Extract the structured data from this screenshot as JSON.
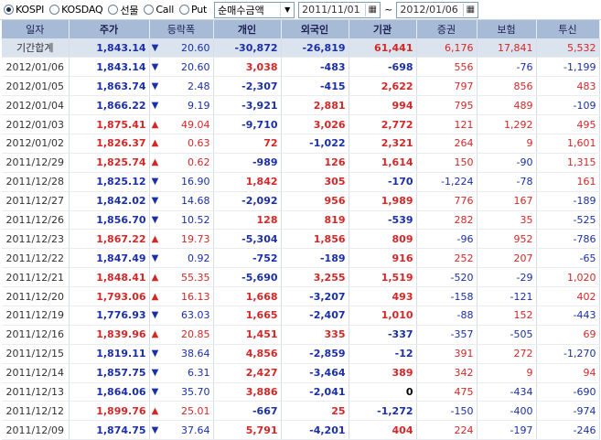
{
  "market_options": [
    {
      "label": "KOSPI",
      "selected": true
    },
    {
      "label": "KOSDAQ",
      "selected": false
    },
    {
      "label": "선물",
      "selected": false
    },
    {
      "label": "Call",
      "selected": false
    },
    {
      "label": "Put",
      "selected": false
    }
  ],
  "mode_select": {
    "value": "순매수금액"
  },
  "date_range": {
    "start": "2011/11/01",
    "separator": "~",
    "end": "2012/01/06"
  },
  "columns": [
    "일자",
    "주가",
    "등락폭",
    "개인",
    "외국인",
    "기관",
    "증권",
    "보험",
    "투신"
  ],
  "colors": {
    "up": "#d42727",
    "down": "#1a2fa8",
    "header_bg": "#a7bbd7",
    "summary_bg": "#dbe3ef"
  },
  "rows": [
    {
      "date": "기간합계",
      "price": "1,843.14",
      "dir": "down",
      "change": "20.60",
      "individual": "-30,872",
      "foreign": "-26,819",
      "institution": "61,441",
      "securities": "6,176",
      "insurance": "17,841",
      "trust": "5,532"
    },
    {
      "date": "2012/01/06",
      "price": "1,843.14",
      "dir": "down",
      "change": "20.60",
      "individual": "3,038",
      "foreign": "-483",
      "institution": "-698",
      "securities": "556",
      "insurance": "-76",
      "trust": "-1,199"
    },
    {
      "date": "2012/01/05",
      "price": "1,863.74",
      "dir": "down",
      "change": "2.48",
      "individual": "-2,307",
      "foreign": "-415",
      "institution": "2,622",
      "securities": "797",
      "insurance": "856",
      "trust": "483"
    },
    {
      "date": "2012/01/04",
      "price": "1,866.22",
      "dir": "down",
      "change": "9.19",
      "individual": "-3,921",
      "foreign": "2,881",
      "institution": "994",
      "securities": "795",
      "insurance": "489",
      "trust": "-109"
    },
    {
      "date": "2012/01/03",
      "price": "1,875.41",
      "dir": "up",
      "change": "49.04",
      "individual": "-9,710",
      "foreign": "3,026",
      "institution": "2,772",
      "securities": "121",
      "insurance": "1,292",
      "trust": "495"
    },
    {
      "date": "2012/01/02",
      "price": "1,826.37",
      "dir": "up",
      "change": "0.63",
      "individual": "72",
      "foreign": "-1,022",
      "institution": "2,321",
      "securities": "264",
      "insurance": "9",
      "trust": "1,601"
    },
    {
      "date": "2011/12/29",
      "price": "1,825.74",
      "dir": "up",
      "change": "0.62",
      "individual": "-989",
      "foreign": "126",
      "institution": "1,614",
      "securities": "150",
      "insurance": "-90",
      "trust": "1,315"
    },
    {
      "date": "2011/12/28",
      "price": "1,825.12",
      "dir": "down",
      "change": "16.90",
      "individual": "1,842",
      "foreign": "305",
      "institution": "-170",
      "securities": "-1,224",
      "insurance": "-78",
      "trust": "161"
    },
    {
      "date": "2011/12/27",
      "price": "1,842.02",
      "dir": "down",
      "change": "14.68",
      "individual": "-2,092",
      "foreign": "956",
      "institution": "1,989",
      "securities": "776",
      "insurance": "167",
      "trust": "-189"
    },
    {
      "date": "2011/12/26",
      "price": "1,856.70",
      "dir": "down",
      "change": "10.52",
      "individual": "128",
      "foreign": "819",
      "institution": "-539",
      "securities": "282",
      "insurance": "35",
      "trust": "-525"
    },
    {
      "date": "2011/12/23",
      "price": "1,867.22",
      "dir": "up",
      "change": "19.73",
      "individual": "-5,304",
      "foreign": "1,856",
      "institution": "809",
      "securities": "-96",
      "insurance": "952",
      "trust": "-786"
    },
    {
      "date": "2011/12/22",
      "price": "1,847.49",
      "dir": "down",
      "change": "0.92",
      "individual": "-752",
      "foreign": "-189",
      "institution": "916",
      "securities": "252",
      "insurance": "207",
      "trust": "-65"
    },
    {
      "date": "2011/12/21",
      "price": "1,848.41",
      "dir": "up",
      "change": "55.35",
      "individual": "-5,690",
      "foreign": "3,255",
      "institution": "1,519",
      "securities": "-520",
      "insurance": "-29",
      "trust": "1,020"
    },
    {
      "date": "2011/12/20",
      "price": "1,793.06",
      "dir": "up",
      "change": "16.13",
      "individual": "1,668",
      "foreign": "-3,207",
      "institution": "493",
      "securities": "-158",
      "insurance": "-121",
      "trust": "402"
    },
    {
      "date": "2011/12/19",
      "price": "1,776.93",
      "dir": "down",
      "change": "63.03",
      "individual": "1,665",
      "foreign": "-2,407",
      "institution": "1,010",
      "securities": "-88",
      "insurance": "152",
      "trust": "-443"
    },
    {
      "date": "2011/12/16",
      "price": "1,839.96",
      "dir": "up",
      "change": "20.85",
      "individual": "1,451",
      "foreign": "335",
      "institution": "-337",
      "securities": "-357",
      "insurance": "-505",
      "trust": "69"
    },
    {
      "date": "2011/12/15",
      "price": "1,819.11",
      "dir": "down",
      "change": "38.64",
      "individual": "4,856",
      "foreign": "-2,859",
      "institution": "-12",
      "securities": "391",
      "insurance": "272",
      "trust": "-1,270"
    },
    {
      "date": "2011/12/14",
      "price": "1,857.75",
      "dir": "down",
      "change": "6.31",
      "individual": "2,427",
      "foreign": "-3,464",
      "institution": "389",
      "securities": "342",
      "insurance": "9",
      "trust": "94"
    },
    {
      "date": "2011/12/13",
      "price": "1,864.06",
      "dir": "down",
      "change": "35.70",
      "individual": "3,886",
      "foreign": "-2,041",
      "institution": "0",
      "securities": "475",
      "insurance": "-434",
      "trust": "-690"
    },
    {
      "date": "2011/12/12",
      "price": "1,899.76",
      "dir": "up",
      "change": "25.01",
      "individual": "-667",
      "foreign": "25",
      "institution": "-1,272",
      "securities": "-150",
      "insurance": "-400",
      "trust": "-974"
    },
    {
      "date": "2011/12/09",
      "price": "1,874.75",
      "dir": "down",
      "change": "37.64",
      "individual": "5,791",
      "foreign": "-4,201",
      "institution": "404",
      "securities": "224",
      "insurance": "-197",
      "trust": "-246"
    }
  ]
}
